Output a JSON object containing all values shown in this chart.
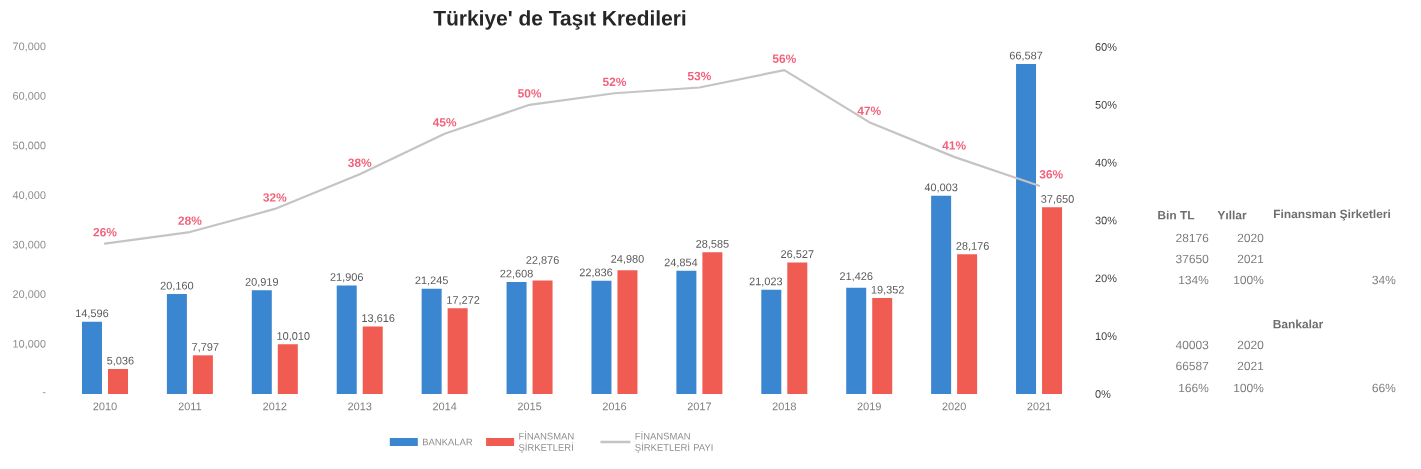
{
  "chart_data": [
    {
      "type": "bar",
      "title": "Türkiye' de Taşıt Kredileri",
      "categories": [
        "2010",
        "2011",
        "2012",
        "2013",
        "2014",
        "2015",
        "2016",
        "2017",
        "2018",
        "2019",
        "2020",
        "2021"
      ],
      "series": [
        {
          "name": "BANKALAR",
          "color": "#3a86d0",
          "values": [
            14596,
            20160,
            20919,
            21906,
            21245,
            22608,
            22836,
            24854,
            21023,
            21426,
            40003,
            66587
          ],
          "value_labels": [
            "14,596",
            "20,160",
            "20,919",
            "21,906",
            "21,245",
            "22,608",
            "22,836",
            "24,854",
            "21,023",
            "21,426",
            "40,003",
            "66,587"
          ]
        },
        {
          "name": "FİNANSMAN ŞİRKETLERİ",
          "color": "#f05b52",
          "values": [
            5036,
            7797,
            10010,
            13616,
            17272,
            22876,
            24980,
            28585,
            26527,
            19352,
            28176,
            37650
          ],
          "value_labels": [
            "5,036",
            "7,797",
            "10,010",
            "13,616",
            "17,272",
            "22,876",
            "24,980",
            "28,585",
            "26,527",
            "19,352",
            "28,176",
            "37,650"
          ]
        },
        {
          "name": "FİNANSMAN ŞİRKETLERİ PAYI",
          "type": "line",
          "axis": "y2",
          "color": "#c4c4c4",
          "values": [
            26,
            28,
            32,
            38,
            45,
            50,
            52,
            53,
            56,
            47,
            41,
            36
          ],
          "value_labels": [
            "26%",
            "28%",
            "32%",
            "38%",
            "45%",
            "50%",
            "52%",
            "53%",
            "56%",
            "47%",
            "41%",
            "36%"
          ]
        }
      ],
      "ylim": [
        0,
        70000
      ],
      "yticks": [
        {
          "value": 0,
          "label": "-"
        },
        {
          "value": 10000,
          "label": "10,000"
        },
        {
          "value": 20000,
          "label": "20,000"
        },
        {
          "value": 30000,
          "label": "30,000"
        },
        {
          "value": 40000,
          "label": "40,000"
        },
        {
          "value": 50000,
          "label": "50,000"
        },
        {
          "value": 60000,
          "label": "60,000"
        },
        {
          "value": 70000,
          "label": "70,000"
        }
      ],
      "y2lim": [
        0,
        60
      ],
      "y2ticks": [
        {
          "value": 0,
          "label": "0%"
        },
        {
          "value": 10,
          "label": "10%"
        },
        {
          "value": 20,
          "label": "20%"
        },
        {
          "value": 30,
          "label": "30%"
        },
        {
          "value": 40,
          "label": "40%"
        },
        {
          "value": 50,
          "label": "50%"
        },
        {
          "value": 60,
          "label": "60%"
        }
      ],
      "legend": "bottom"
    },
    {
      "type": "other",
      "annotations": [
        "Bin TL",
        "Yıllar",
        "Finansman Şirketleri",
        "28176",
        "2020",
        "37650",
        "2021",
        "134%",
        "100%",
        "34%",
        "Bankalar",
        "40003",
        "2020",
        "66587",
        "2021",
        "166%",
        "100%",
        "66%"
      ]
    }
  ]
}
